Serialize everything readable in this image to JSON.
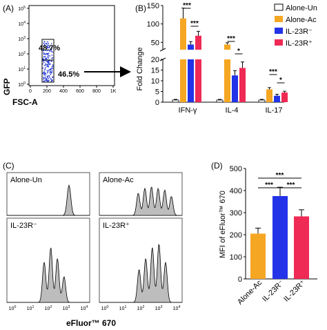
{
  "panel_letters": [
    "(A)",
    "(B)",
    "(C)",
    "(D)"
  ],
  "colors": {
    "alone_un": "#ffffff",
    "alone_ac": "#f5a623",
    "il23r_minus": "#2233e8",
    "il23r_plus": "#ee2a55",
    "dots": "#2b3fd6",
    "histogram": "#bdbdbd"
  },
  "chart_data": [
    {
      "panel": "(A)",
      "type": "scatter",
      "xlabel": "FSC-A",
      "ylabel": "GFP",
      "x_ticks": [
        "0",
        "200",
        "400",
        "600",
        "800",
        "1K"
      ],
      "y_ticks": [
        "10^0",
        "10^1",
        "10^2",
        "10^3",
        "10^4",
        "10^5"
      ],
      "gates": [
        {
          "label": "48.7%",
          "value": 48.7
        },
        {
          "label": "46.5%",
          "value": 46.5
        }
      ]
    },
    {
      "panel": "(B)",
      "type": "bar",
      "ylabel": "Fold Change",
      "categories": [
        "IFN-γ",
        "IL-4",
        "IL-17"
      ],
      "y_ticks_lower": [
        "0",
        "5",
        "10",
        "15",
        "20"
      ],
      "y_ticks_upper": [
        "50",
        "100",
        "150"
      ],
      "axis_break": [
        20,
        30
      ],
      "legend": [
        "Alone-Un",
        "Alone-Ac",
        "IL-23R⁻",
        "IL-23R⁺"
      ],
      "legend_position": "top-right",
      "series": [
        {
          "name": "Alone-Un",
          "values": [
            1,
            1,
            1
          ],
          "errors": [
            0.3,
            0.3,
            0.3
          ]
        },
        {
          "name": "Alone-Ac",
          "values": [
            115,
            44,
            6
          ],
          "errors": [
            28,
            5,
            0.8
          ]
        },
        {
          "name": "IL-23R⁻",
          "values": [
            44,
            12.5,
            3
          ],
          "errors": [
            8,
            2.2,
            0.7
          ]
        },
        {
          "name": "IL-23R⁺",
          "values": [
            68,
            16,
            4.5
          ],
          "errors": [
            12,
            2.8,
            0.6
          ]
        }
      ],
      "significance": [
        "***",
        "***",
        "***",
        "*",
        "***",
        "*"
      ]
    },
    {
      "panel": "(C)",
      "type": "area",
      "xlabel": "eFluor™ 670",
      "x_ticks": [
        "10^0",
        "10^1",
        "10^2",
        "10^3",
        "10^4"
      ],
      "histograms": [
        {
          "title": "Alone-Un",
          "peaks": [
            1
          ]
        },
        {
          "title": "Alone-Ac",
          "peaks": [
            6,
            5,
            4,
            3,
            2,
            1
          ]
        },
        {
          "title": "IL-23R⁻",
          "peaks": [
            4,
            3,
            2,
            1
          ]
        },
        {
          "title": "IL-23R⁺",
          "peaks": [
            5,
            4,
            3,
            2,
            1
          ]
        }
      ]
    },
    {
      "panel": "(D)",
      "type": "bar",
      "ylabel": "MFI of eFluor™ 670",
      "categories": [
        "Alone-Ac",
        "IL-23R⁻",
        "IL-23R⁺"
      ],
      "values": [
        205,
        375,
        283
      ],
      "errors": [
        25,
        40,
        30
      ],
      "ylim": [
        0,
        500
      ],
      "y_ticks": [
        "0",
        "100",
        "200",
        "300",
        "400",
        "500"
      ],
      "significance": [
        "***",
        "***",
        "***"
      ]
    }
  ]
}
